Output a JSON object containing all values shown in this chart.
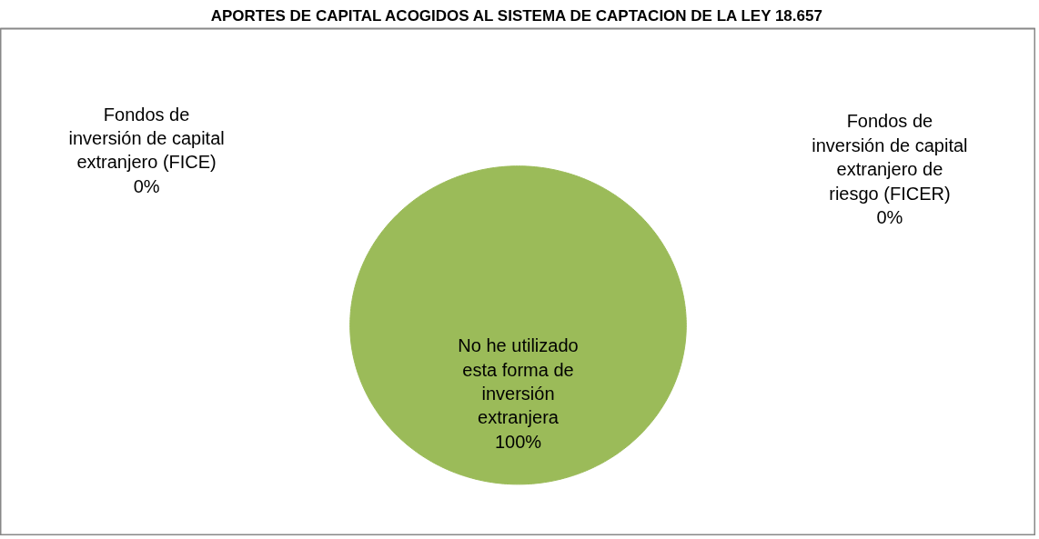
{
  "chart_data": {
    "type": "pie",
    "title": "APORTES DE CAPITAL ACOGIDOS AL SISTEMA DE CAPTACION DE LA LEY 18.657",
    "categories": [
      "Fondos de\ninversión de capital\nextranjero (FICE)",
      "Fondos de\ninversión de capital\nextranjero de\nriesgo (FICER)",
      "No he utilizado\nesta forma de\ninversión\nextranjera"
    ],
    "values": [
      0,
      0,
      100
    ],
    "colors": [
      "#4f81bd",
      "#c0504d",
      "#9bbb59"
    ],
    "value_labels": [
      "0%",
      "0%",
      "100%"
    ],
    "legend": false
  }
}
